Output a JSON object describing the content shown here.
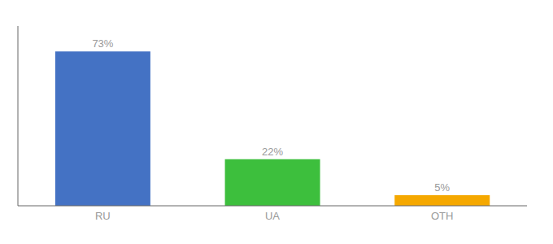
{
  "chart_data": {
    "type": "bar",
    "categories": [
      "RU",
      "UA",
      "OTH"
    ],
    "values": [
      73,
      22,
      5
    ],
    "value_labels": [
      "73%",
      "22%",
      "5%"
    ],
    "colors": [
      "#4472c4",
      "#3dbf3d",
      "#f5a800"
    ],
    "ylim": [
      0,
      85
    ],
    "data_labels": true,
    "tick_labels": "x"
  }
}
